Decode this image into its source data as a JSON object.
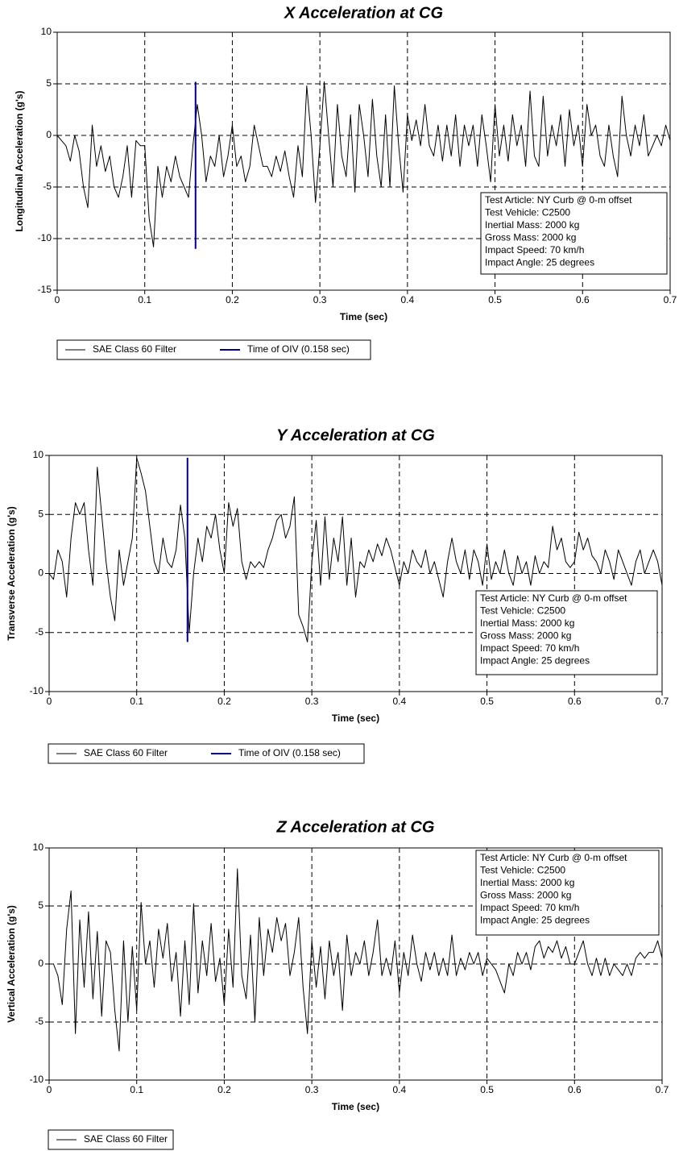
{
  "chart_data": [
    {
      "type": "line",
      "title": "X Acceleration at CG",
      "xlabel": "Time (sec)",
      "ylabel": "Longitudinal Acceleration (g's)",
      "x": [
        0,
        0.005,
        0.01,
        0.015,
        0.02,
        0.025,
        0.03,
        0.035,
        0.04,
        0.045,
        0.05,
        0.055,
        0.06,
        0.065,
        0.07,
        0.075,
        0.08,
        0.085,
        0.09,
        0.095,
        0.1,
        0.105,
        0.11,
        0.115,
        0.12,
        0.125,
        0.13,
        0.135,
        0.14,
        0.145,
        0.15,
        0.155,
        0.16,
        0.165,
        0.17,
        0.175,
        0.18,
        0.185,
        0.19,
        0.195,
        0.2,
        0.205,
        0.21,
        0.215,
        0.22,
        0.225,
        0.23,
        0.235,
        0.24,
        0.245,
        0.25,
        0.255,
        0.26,
        0.265,
        0.27,
        0.275,
        0.28,
        0.285,
        0.29,
        0.295,
        0.3,
        0.305,
        0.31,
        0.315,
        0.32,
        0.325,
        0.33,
        0.335,
        0.34,
        0.345,
        0.35,
        0.355,
        0.36,
        0.365,
        0.37,
        0.375,
        0.38,
        0.385,
        0.39,
        0.395,
        0.4,
        0.405,
        0.41,
        0.415,
        0.42,
        0.425,
        0.43,
        0.435,
        0.44,
        0.445,
        0.45,
        0.455,
        0.46,
        0.465,
        0.47,
        0.475,
        0.48,
        0.485,
        0.49,
        0.495,
        0.5,
        0.505,
        0.51,
        0.515,
        0.52,
        0.525,
        0.53,
        0.535,
        0.54,
        0.545,
        0.55,
        0.555,
        0.56,
        0.565,
        0.57,
        0.575,
        0.58,
        0.585,
        0.59,
        0.595,
        0.6,
        0.605,
        0.61,
        0.615,
        0.62,
        0.625,
        0.63,
        0.635,
        0.64,
        0.645,
        0.65,
        0.655,
        0.66,
        0.665,
        0.67,
        0.675,
        0.68,
        0.685,
        0.69,
        0.695,
        0.7
      ],
      "series": [
        {
          "name": "SAE Class 60 Filter",
          "color": "#000000",
          "values": [
            0,
            -0.5,
            -1,
            -2.5,
            0,
            -1.5,
            -5,
            -7,
            1,
            -3,
            -1,
            -3.5,
            -2,
            -5,
            -6,
            -4,
            -1,
            -6,
            -0.5,
            -1,
            -1,
            -8,
            -10.8,
            -3,
            -6,
            -3,
            -4.5,
            -2,
            -4,
            -5,
            -6,
            -1,
            3,
            0,
            -4.5,
            -2,
            -3,
            0,
            -4,
            -2,
            1,
            -3,
            -2,
            -4.5,
            -3,
            1,
            -1,
            -3,
            -3,
            -4,
            -2,
            -3.5,
            -1.5,
            -4,
            -6,
            -1,
            -4,
            4.8,
            0,
            -6.5,
            -1,
            5.2,
            0,
            -5,
            3,
            -2,
            -4,
            2,
            -5.5,
            3,
            0,
            -4,
            3.5,
            -2,
            -5,
            2,
            -5,
            4.8,
            -1,
            -5.5,
            2,
            -0.5,
            1.5,
            -1,
            3,
            -1,
            -2,
            1,
            -2.5,
            1,
            -2,
            2,
            -3,
            1,
            -1,
            1,
            -3,
            2,
            -1,
            -4.5,
            3,
            -2,
            1,
            -2.5,
            2,
            -1,
            1,
            -3,
            4.3,
            -2,
            -3,
            3.8,
            -2,
            1,
            -1,
            2,
            -3,
            2.5,
            -1,
            1,
            -3,
            3,
            0,
            1,
            -2,
            -3,
            1,
            -2,
            -4,
            3.8,
            0,
            -2,
            1,
            -1,
            2,
            -2,
            -1,
            0,
            -1,
            1,
            -0.5
          ]
        },
        {
          "name": "Time of OIV (0.158 sec)",
          "color": "#000080",
          "x": [
            0.158,
            0.158
          ],
          "values": [
            -11,
            5.2
          ]
        }
      ],
      "annotation": [
        "Test Article: NY Curb @ 0-m offset",
        "Test Vehicle: C2500",
        "Inertial Mass: 2000 kg",
        "Gross Mass: 2000 kg",
        "Impact Speed: 70 km/h",
        "Impact Angle: 25 degrees"
      ],
      "xlim": [
        0,
        0.7
      ],
      "xticks": [
        0,
        0.1,
        0.2,
        0.3,
        0.4,
        0.5,
        0.6,
        0.7
      ],
      "ylim": [
        -15,
        10
      ],
      "yticks": [
        -15,
        -10,
        -5,
        0,
        5,
        10
      ],
      "grid": true,
      "legend_position": "bottom"
    },
    {
      "type": "line",
      "title": "Y Acceleration at CG",
      "xlabel": "Time (sec)",
      "ylabel": "Transverse Acceleration (g's)",
      "x": [
        0,
        0.005,
        0.01,
        0.015,
        0.02,
        0.025,
        0.03,
        0.035,
        0.04,
        0.045,
        0.05,
        0.055,
        0.06,
        0.065,
        0.07,
        0.075,
        0.08,
        0.085,
        0.09,
        0.095,
        0.1,
        0.105,
        0.11,
        0.115,
        0.12,
        0.125,
        0.13,
        0.135,
        0.14,
        0.145,
        0.15,
        0.155,
        0.16,
        0.165,
        0.17,
        0.175,
        0.18,
        0.185,
        0.19,
        0.195,
        0.2,
        0.205,
        0.21,
        0.215,
        0.22,
        0.225,
        0.23,
        0.235,
        0.24,
        0.245,
        0.25,
        0.255,
        0.26,
        0.265,
        0.27,
        0.275,
        0.28,
        0.285,
        0.29,
        0.295,
        0.3,
        0.305,
        0.31,
        0.315,
        0.32,
        0.325,
        0.33,
        0.335,
        0.34,
        0.345,
        0.35,
        0.355,
        0.36,
        0.365,
        0.37,
        0.375,
        0.38,
        0.385,
        0.39,
        0.395,
        0.4,
        0.405,
        0.41,
        0.415,
        0.42,
        0.425,
        0.43,
        0.435,
        0.44,
        0.445,
        0.45,
        0.455,
        0.46,
        0.465,
        0.47,
        0.475,
        0.48,
        0.485,
        0.49,
        0.495,
        0.5,
        0.505,
        0.51,
        0.515,
        0.52,
        0.525,
        0.53,
        0.535,
        0.54,
        0.545,
        0.55,
        0.555,
        0.56,
        0.565,
        0.57,
        0.575,
        0.58,
        0.585,
        0.59,
        0.595,
        0.6,
        0.605,
        0.61,
        0.615,
        0.62,
        0.625,
        0.63,
        0.635,
        0.64,
        0.645,
        0.65,
        0.655,
        0.66,
        0.665,
        0.67,
        0.675,
        0.68,
        0.685,
        0.69,
        0.695,
        0.7
      ],
      "series": [
        {
          "name": "SAE Class 60 Filter",
          "color": "#000000",
          "values": [
            0,
            -0.5,
            2,
            1,
            -2,
            3,
            6,
            5,
            6,
            2,
            -1,
            9,
            5,
            1,
            -2,
            -4,
            2,
            -1,
            1,
            3,
            9.8,
            8.5,
            7,
            4,
            1,
            0,
            3,
            1,
            0.5,
            2,
            5.8,
            3,
            -5,
            0,
            3,
            1,
            4,
            3,
            5,
            2,
            0,
            6,
            4,
            5.5,
            1,
            -0.5,
            1,
            0.5,
            1,
            0.5,
            2,
            3,
            4.5,
            5,
            3,
            4,
            6.5,
            -3.5,
            -4.5,
            -5.8,
            1,
            4.5,
            -1,
            4.8,
            -0.5,
            3,
            1,
            4.8,
            -1,
            3,
            -2,
            1,
            0.5,
            2,
            1,
            2.5,
            1.5,
            3,
            2,
            0.5,
            -1,
            1,
            0,
            2,
            1,
            0.5,
            2,
            0,
            1,
            -0.5,
            -2,
            1,
            3,
            1,
            0,
            2,
            -0.5,
            2,
            1,
            -1,
            2.5,
            -0.5,
            1,
            0,
            2,
            0,
            -1,
            1.5,
            0,
            1,
            -1,
            1.5,
            0,
            1,
            0.5,
            4,
            2,
            3,
            1,
            0.5,
            1,
            3.5,
            2,
            3,
            1.5,
            1,
            0,
            2,
            1,
            -0.5,
            2,
            1,
            0,
            -1,
            1,
            2,
            0,
            1,
            2,
            1,
            -1
          ]
        },
        {
          "name": "Time of OIV (0.158 sec)",
          "color": "#000080",
          "x": [
            0.158,
            0.158
          ],
          "values": [
            -5.8,
            9.8
          ]
        }
      ],
      "annotation": [
        "Test Article: NY Curb @ 0-m offset",
        "Test Vehicle: C2500",
        "Inertial Mass: 2000 kg",
        "Gross Mass: 2000 kg",
        "Impact Speed: 70 km/h",
        "Impact Angle: 25 degrees"
      ],
      "xlim": [
        0,
        0.7
      ],
      "xticks": [
        0,
        0.1,
        0.2,
        0.3,
        0.4,
        0.5,
        0.6,
        0.7
      ],
      "ylim": [
        -10,
        10
      ],
      "yticks": [
        -10,
        -5,
        0,
        5,
        10
      ],
      "grid": true,
      "legend_position": "bottom"
    },
    {
      "type": "line",
      "title": "Z Acceleration at CG",
      "xlabel": "Time (sec)",
      "ylabel": "Vertical Acceleration (g's)",
      "x": [
        0,
        0.005,
        0.01,
        0.015,
        0.02,
        0.025,
        0.03,
        0.035,
        0.04,
        0.045,
        0.05,
        0.055,
        0.06,
        0.065,
        0.07,
        0.075,
        0.08,
        0.085,
        0.09,
        0.095,
        0.1,
        0.105,
        0.11,
        0.115,
        0.12,
        0.125,
        0.13,
        0.135,
        0.14,
        0.145,
        0.15,
        0.155,
        0.16,
        0.165,
        0.17,
        0.175,
        0.18,
        0.185,
        0.19,
        0.195,
        0.2,
        0.205,
        0.21,
        0.215,
        0.22,
        0.225,
        0.23,
        0.235,
        0.24,
        0.245,
        0.25,
        0.255,
        0.26,
        0.265,
        0.27,
        0.275,
        0.28,
        0.285,
        0.29,
        0.295,
        0.3,
        0.305,
        0.31,
        0.315,
        0.32,
        0.325,
        0.33,
        0.335,
        0.34,
        0.345,
        0.35,
        0.355,
        0.36,
        0.365,
        0.37,
        0.375,
        0.38,
        0.385,
        0.39,
        0.395,
        0.4,
        0.405,
        0.41,
        0.415,
        0.42,
        0.425,
        0.43,
        0.435,
        0.44,
        0.445,
        0.45,
        0.455,
        0.46,
        0.465,
        0.47,
        0.475,
        0.48,
        0.485,
        0.49,
        0.495,
        0.5,
        0.505,
        0.51,
        0.515,
        0.52,
        0.525,
        0.53,
        0.535,
        0.54,
        0.545,
        0.55,
        0.555,
        0.56,
        0.565,
        0.57,
        0.575,
        0.58,
        0.585,
        0.59,
        0.595,
        0.6,
        0.605,
        0.61,
        0.615,
        0.62,
        0.625,
        0.63,
        0.635,
        0.64,
        0.645,
        0.65,
        0.655,
        0.66,
        0.665,
        0.67,
        0.675,
        0.68,
        0.685,
        0.69,
        0.695,
        0.7
      ],
      "series": [
        {
          "name": "SAE Class 60 Filter",
          "color": "#000000",
          "values": [
            0,
            0,
            -1,
            -3.5,
            3,
            6.3,
            -6,
            3.8,
            -2,
            4.5,
            -3,
            2.8,
            -4.5,
            2,
            1,
            -4,
            -7.5,
            2,
            -5,
            1.5,
            -4,
            5.3,
            0,
            2,
            -2,
            3,
            0.5,
            3.5,
            -1.5,
            1,
            -4.5,
            2,
            -3.5,
            5.2,
            -2.5,
            2,
            -1,
            3.5,
            -1.5,
            0.5,
            -3.5,
            3,
            -2,
            8.2,
            -1,
            -3,
            2.5,
            -5,
            4,
            -1,
            3,
            1,
            4,
            2,
            3.5,
            -1,
            1,
            4,
            -2,
            -6,
            2,
            -2,
            1.5,
            -3,
            2,
            -1,
            1,
            -4,
            2.5,
            -1,
            1,
            0,
            2,
            -1,
            1,
            3.8,
            -1,
            0.5,
            -1,
            2,
            -2.5,
            1,
            -1,
            2.5,
            0,
            -1.5,
            1,
            -0.5,
            1,
            -1,
            0.5,
            -1,
            2.5,
            -1,
            0.5,
            -0.5,
            1,
            0,
            1,
            -1,
            0.5,
            0,
            -0.5,
            -1.5,
            -2.5,
            0,
            -1,
            1,
            0,
            1,
            -0.5,
            1.5,
            2,
            0.5,
            1.5,
            1,
            2,
            0.5,
            1.5,
            0,
            0,
            1,
            2,
            0,
            -1,
            0.5,
            -1,
            0.5,
            -1,
            0,
            -0.5,
            -1,
            0,
            -1,
            0.5,
            1,
            0.5,
            1,
            1,
            2,
            0.5
          ]
        }
      ],
      "annotation": [
        "Test Article: NY Curb @ 0-m offset",
        "Test Vehicle: C2500",
        "Inertial Mass: 2000 kg",
        "Gross Mass: 2000 kg",
        "Impact Speed: 70 km/h",
        "Impact Angle: 25 degrees"
      ],
      "xlim": [
        0,
        0.7
      ],
      "xticks": [
        0,
        0.1,
        0.2,
        0.3,
        0.4,
        0.5,
        0.6,
        0.7
      ],
      "ylim": [
        -10,
        10
      ],
      "yticks": [
        -10,
        -5,
        0,
        5,
        10
      ],
      "grid": true,
      "legend_position": "bottom"
    }
  ]
}
